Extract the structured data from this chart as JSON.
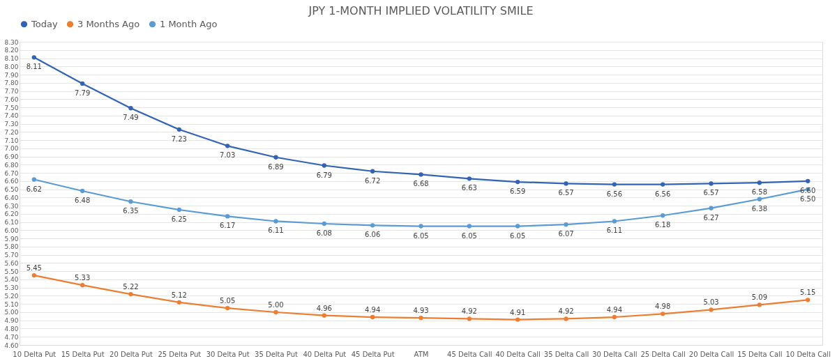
{
  "chart_data": {
    "type": "line",
    "title": "JPY 1-MONTH IMPLIED VOLATILITY SMILE",
    "categories": [
      "10 Delta Put",
      "15 Delta Put",
      "20 Delta Put",
      "25 Delta Put",
      "30 Delta Put",
      "35 Delta Put",
      "40 Delta Put",
      "45 Delta Put",
      "ATM",
      "45 Delta Call",
      "40 Delta Call",
      "35 Delta Call",
      "30 Delta Call",
      "25 Delta Call",
      "20 Delta Call",
      "15 Delta Call",
      "10 Delta Call"
    ],
    "series": [
      {
        "name": "Today",
        "color": "#3263b5",
        "values": [
          8.11,
          7.79,
          7.49,
          7.23,
          7.03,
          6.89,
          6.79,
          6.72,
          6.68,
          6.63,
          6.59,
          6.57,
          6.56,
          6.56,
          6.57,
          6.58,
          6.6
        ],
        "value_labels": [
          "8.11",
          "7.79",
          "7.49",
          "7.23",
          "7.03",
          "6.89",
          "6.79",
          "6.72",
          "6.68",
          "6.63",
          "6.59",
          "6.57",
          "6.56",
          "6.56",
          "6.57",
          "6.58",
          "6.60"
        ]
      },
      {
        "name": "3 Months Ago",
        "color": "#ed7d31",
        "values": [
          5.45,
          5.33,
          5.22,
          5.12,
          5.05,
          5.0,
          4.96,
          4.94,
          4.93,
          4.92,
          4.91,
          4.92,
          4.94,
          4.98,
          5.03,
          5.09,
          5.15
        ],
        "value_labels": [
          "5.45",
          "5.33",
          "5.22",
          "5.12",
          "5.05",
          "5.00",
          "4.96",
          "4.94",
          "4.93",
          "4.92",
          "4.91",
          "4.92",
          "4.94",
          "4.98",
          "5.03",
          "5.09",
          "5.15"
        ]
      },
      {
        "name": "1 Month Ago",
        "color": "#5b9bd5",
        "values": [
          6.62,
          6.48,
          6.35,
          6.25,
          6.17,
          6.11,
          6.08,
          6.06,
          6.05,
          6.05,
          6.05,
          6.07,
          6.11,
          6.18,
          6.27,
          6.38,
          6.5
        ],
        "value_labels": [
          "6.62",
          "6.48",
          "6.35",
          "6.25",
          "6.17",
          "6.11",
          "6.08",
          "6.06",
          "6.05",
          "6.05",
          "6.05",
          "6.07",
          "6.11",
          "6.18",
          "6.27",
          "6.38",
          "6.50"
        ]
      }
    ],
    "ylim": [
      4.6,
      8.3
    ],
    "yticks": [
      {
        "value": 4.6,
        "label": "4.60"
      },
      {
        "value": 4.7,
        "label": "4.70"
      },
      {
        "value": 4.8,
        "label": "4.80"
      },
      {
        "value": 4.9,
        "label": "4.90"
      },
      {
        "value": 5.0,
        "label": "5.00"
      },
      {
        "value": 5.1,
        "label": "5.10"
      },
      {
        "value": 5.2,
        "label": "5.20"
      },
      {
        "value": 5.3,
        "label": "5.30"
      },
      {
        "value": 5.4,
        "label": "5.40"
      },
      {
        "value": 5.5,
        "label": "5.50"
      },
      {
        "value": 5.6,
        "label": "5.60"
      },
      {
        "value": 5.7,
        "label": "5.70"
      },
      {
        "value": 5.8,
        "label": "5.80"
      },
      {
        "value": 5.9,
        "label": "5.90"
      },
      {
        "value": 6.0,
        "label": "6.00"
      },
      {
        "value": 6.1,
        "label": "6.10"
      },
      {
        "value": 6.2,
        "label": "6.20"
      },
      {
        "value": 6.3,
        "label": "6.30"
      },
      {
        "value": 6.4,
        "label": "6.40"
      },
      {
        "value": 6.5,
        "label": "6.50"
      },
      {
        "value": 6.6,
        "label": "6.60"
      },
      {
        "value": 6.7,
        "label": "6.70"
      },
      {
        "value": 6.8,
        "label": "6.80"
      },
      {
        "value": 6.9,
        "label": "6.90"
      },
      {
        "value": 7.0,
        "label": "7.00"
      },
      {
        "value": 7.1,
        "label": "7.10"
      },
      {
        "value": 7.2,
        "label": "7.20"
      },
      {
        "value": 7.3,
        "label": "7.30"
      },
      {
        "value": 7.4,
        "label": "7.40"
      },
      {
        "value": 7.5,
        "label": "7.50"
      },
      {
        "value": 7.6,
        "label": "7.60"
      },
      {
        "value": 7.7,
        "label": "7.70"
      },
      {
        "value": 7.8,
        "label": "7.80"
      },
      {
        "value": 7.9,
        "label": "7.90"
      },
      {
        "value": 8.0,
        "label": "8.00"
      },
      {
        "value": 8.1,
        "label": "8.10"
      },
      {
        "value": 8.2,
        "label": "8.20"
      },
      {
        "value": 8.3,
        "label": "8.30"
      }
    ],
    "grid": "y",
    "legend": "top",
    "marker": "circle",
    "line_style": "solid"
  }
}
